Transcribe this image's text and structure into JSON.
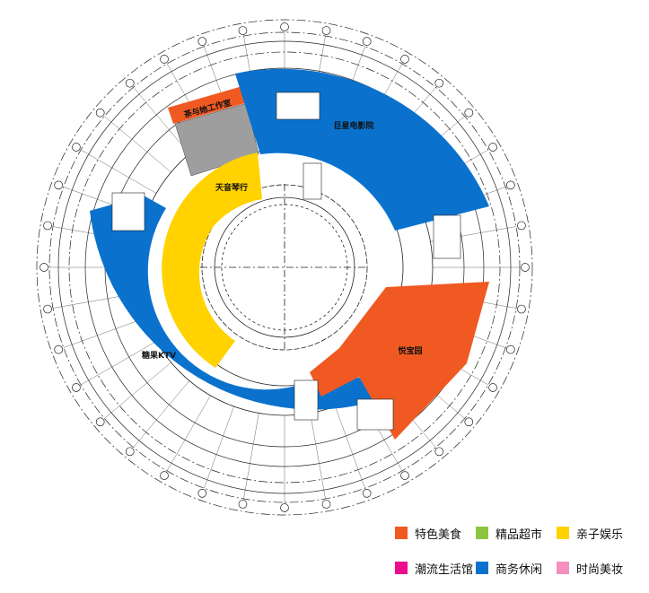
{
  "stores": [
    {
      "id": "tea",
      "name": "茶与她工作室",
      "category": "特色美食"
    },
    {
      "id": "cinema",
      "name": "巨星电影院",
      "category": "商务休闲"
    },
    {
      "id": "piano",
      "name": "天音琴行",
      "category": "亲子娱乐"
    },
    {
      "id": "ktv",
      "name": "糖果KTV",
      "category": "商务休闲"
    },
    {
      "id": "garden",
      "name": "悦宝园",
      "category": "特色美食"
    }
  ],
  "legend": [
    {
      "label": "特色美食",
      "color": "#f05a22"
    },
    {
      "label": "精品超市",
      "color": "#8cc63f"
    },
    {
      "label": "亲子娱乐",
      "color": "#ffd200"
    },
    {
      "label": "潮流生活馆",
      "color": "#ec0c8c"
    },
    {
      "label": "商务休闲",
      "color": "#0a72cd"
    },
    {
      "label": "时尚美妆",
      "color": "#f48fbf"
    }
  ],
  "colors": {
    "unleased": "#9e9e9e",
    "linework": "#222222"
  }
}
